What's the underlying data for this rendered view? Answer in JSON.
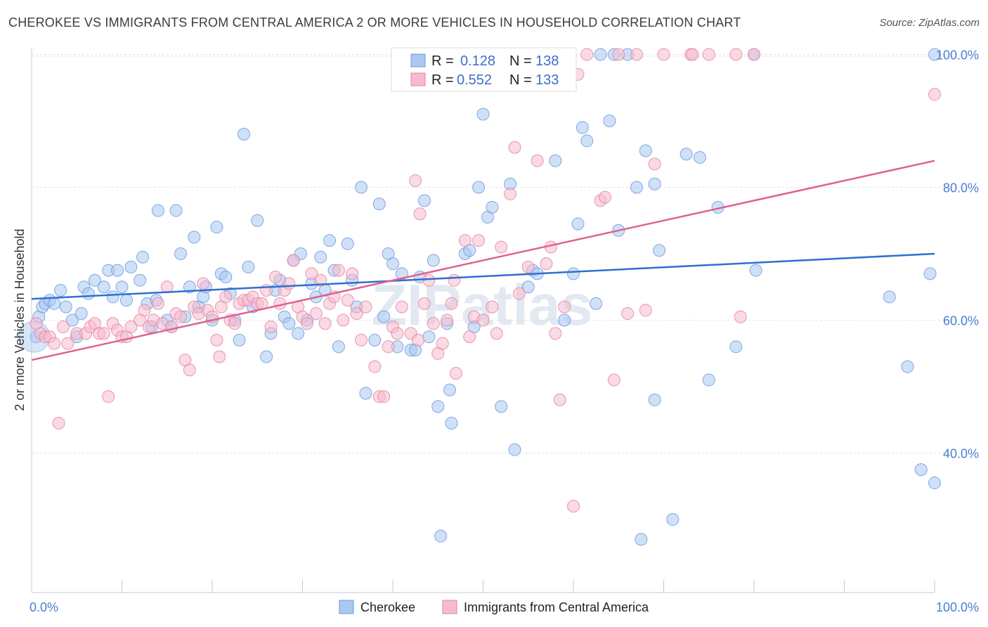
{
  "title": "CHEROKEE VS IMMIGRANTS FROM CENTRAL AMERICA 2 OR MORE VEHICLES IN HOUSEHOLD CORRELATION CHART",
  "source": "Source: ZipAtlas.com",
  "watermark": "ZIPatlas",
  "chart_data": {
    "type": "scatter",
    "xlabel": "",
    "ylabel": "2 or more Vehicles in Household",
    "xlim": [
      0,
      100
    ],
    "ylim": [
      19,
      101
    ],
    "x_tick_labels": [
      "0.0%",
      "100.0%"
    ],
    "y_ticks": [
      40,
      60,
      80,
      100
    ],
    "y_tick_labels": [
      "40.0%",
      "60.0%",
      "80.0%",
      "100.0%"
    ],
    "grid": true,
    "legend_position": "top-center",
    "series": [
      {
        "name": "Cherokee",
        "color": "#aac8f0",
        "edge": "#6a9be0",
        "line_color": "#2f6fd0",
        "R": "0.128",
        "N": "138",
        "trend": [
          [
            0,
            63.2
          ],
          [
            100,
            70.0
          ]
        ],
        "points": [
          [
            0.5,
            57.5
          ],
          [
            0.8,
            60.5
          ],
          [
            1.2,
            62
          ],
          [
            1.5,
            62.5
          ],
          [
            2,
            63
          ],
          [
            2.5,
            62.5
          ],
          [
            3.2,
            64.5
          ],
          [
            3.8,
            62
          ],
          [
            4.5,
            60
          ],
          [
            5,
            57.5
          ],
          [
            5.5,
            61
          ],
          [
            5.8,
            65
          ],
          [
            6.3,
            64
          ],
          [
            7,
            66
          ],
          [
            8,
            65
          ],
          [
            8.5,
            67.5
          ],
          [
            9,
            63.5
          ],
          [
            9.5,
            67.5
          ],
          [
            10,
            65
          ],
          [
            10.5,
            63
          ],
          [
            11,
            68
          ],
          [
            12,
            66
          ],
          [
            12.3,
            69.5
          ],
          [
            12.8,
            62.5
          ],
          [
            13.3,
            59
          ],
          [
            13.8,
            63
          ],
          [
            14,
            76.5
          ],
          [
            15,
            60
          ],
          [
            15.5,
            59
          ],
          [
            16,
            76.5
          ],
          [
            16.5,
            70
          ],
          [
            17,
            60.5
          ],
          [
            17.5,
            65
          ],
          [
            18,
            72.5
          ],
          [
            18.5,
            62
          ],
          [
            19,
            63.5
          ],
          [
            19.3,
            65
          ],
          [
            20,
            60
          ],
          [
            20.5,
            74
          ],
          [
            21,
            67
          ],
          [
            21.5,
            66.5
          ],
          [
            22,
            64
          ],
          [
            22.5,
            60
          ],
          [
            23,
            57
          ],
          [
            23.5,
            88
          ],
          [
            24,
            68
          ],
          [
            24.5,
            62
          ],
          [
            25,
            75
          ],
          [
            26,
            54.5
          ],
          [
            26.5,
            58
          ],
          [
            27,
            64.5
          ],
          [
            27.5,
            66
          ],
          [
            28,
            60.5
          ],
          [
            28.5,
            59.5
          ],
          [
            29,
            69
          ],
          [
            29.5,
            58
          ],
          [
            29.8,
            70
          ],
          [
            30.5,
            60
          ],
          [
            31,
            65.5
          ],
          [
            31.5,
            63.5
          ],
          [
            32,
            69.5
          ],
          [
            32.5,
            64.5
          ],
          [
            33,
            72
          ],
          [
            33.5,
            67.5
          ],
          [
            34,
            56
          ],
          [
            35,
            71.5
          ],
          [
            35.5,
            66
          ],
          [
            36,
            62
          ],
          [
            37,
            49
          ],
          [
            36.5,
            80
          ],
          [
            38,
            57
          ],
          [
            38.5,
            77.5
          ],
          [
            39,
            60.5
          ],
          [
            39.5,
            70
          ],
          [
            40,
            68.5
          ],
          [
            40.5,
            56
          ],
          [
            41,
            67
          ],
          [
            42,
            55.5
          ],
          [
            42.5,
            55.5
          ],
          [
            43,
            66.5
          ],
          [
            43.5,
            78
          ],
          [
            44,
            57.5
          ],
          [
            44.5,
            69
          ],
          [
            45,
            47
          ],
          [
            45.3,
            27.5
          ],
          [
            46,
            59.5
          ],
          [
            46.3,
            49.5
          ],
          [
            46.5,
            44.5
          ],
          [
            48,
            70
          ],
          [
            48.5,
            70.5
          ],
          [
            49,
            59
          ],
          [
            49.5,
            80
          ],
          [
            50,
            91
          ],
          [
            50.5,
            75.5
          ],
          [
            51,
            77
          ],
          [
            52,
            47
          ],
          [
            53,
            80.5
          ],
          [
            53.5,
            40.5
          ],
          [
            55,
            65
          ],
          [
            55.5,
            67.5
          ],
          [
            56,
            67
          ],
          [
            58,
            84
          ],
          [
            59,
            60
          ],
          [
            60,
            67
          ],
          [
            60.5,
            74.5
          ],
          [
            61,
            89
          ],
          [
            61.5,
            87
          ],
          [
            62.5,
            62.5
          ],
          [
            63,
            100
          ],
          [
            64,
            90
          ],
          [
            64.5,
            100
          ],
          [
            65,
            73.5
          ],
          [
            66,
            100
          ],
          [
            67,
            80
          ],
          [
            67.5,
            27
          ],
          [
            68,
            85.5
          ],
          [
            69,
            48
          ],
          [
            69,
            80.5
          ],
          [
            69.5,
            70.5
          ],
          [
            71,
            30
          ],
          [
            72.5,
            85
          ],
          [
            74,
            84.5
          ],
          [
            75,
            51
          ],
          [
            76,
            77
          ],
          [
            78,
            56
          ],
          [
            80,
            100
          ],
          [
            80.2,
            67.5
          ],
          [
            95,
            63.5
          ],
          [
            97,
            53
          ],
          [
            98.5,
            37.5
          ],
          [
            100,
            35.5
          ],
          [
            99.5,
            67
          ],
          [
            100,
            100
          ]
        ]
      },
      {
        "name": "Immigrants from Central America",
        "color": "#f6bccd",
        "edge": "#e6859f",
        "line_color": "#e0628e",
        "R": "0.552",
        "N": "133",
        "trend": [
          [
            0,
            54.0
          ],
          [
            100,
            84.0
          ]
        ],
        "points": [
          [
            0.5,
            59.5
          ],
          [
            1,
            58
          ],
          [
            1.5,
            57.5
          ],
          [
            2,
            57.5
          ],
          [
            2.5,
            56.5
          ],
          [
            3,
            44.5
          ],
          [
            3.5,
            59
          ],
          [
            4,
            56.5
          ],
          [
            5,
            58
          ],
          [
            6,
            58
          ],
          [
            6.5,
            59
          ],
          [
            7,
            59.5
          ],
          [
            7.5,
            58
          ],
          [
            8,
            58
          ],
          [
            8.5,
            48.5
          ],
          [
            9,
            59.5
          ],
          [
            9.5,
            58.5
          ],
          [
            10,
            57.5
          ],
          [
            10.5,
            57.5
          ],
          [
            11,
            59
          ],
          [
            12,
            60
          ],
          [
            12.5,
            61.5
          ],
          [
            13,
            59
          ],
          [
            13.5,
            60
          ],
          [
            14,
            62.5
          ],
          [
            14.5,
            59.5
          ],
          [
            15,
            65
          ],
          [
            15.5,
            59
          ],
          [
            16,
            61
          ],
          [
            16.5,
            60.5
          ],
          [
            17,
            54
          ],
          [
            17.5,
            52.5
          ],
          [
            18,
            62
          ],
          [
            18.5,
            61
          ],
          [
            19,
            65.5
          ],
          [
            19.5,
            61.5
          ],
          [
            20,
            60.5
          ],
          [
            20.5,
            57
          ],
          [
            20.8,
            54.5
          ],
          [
            21,
            62
          ],
          [
            21.5,
            63.5
          ],
          [
            22,
            60
          ],
          [
            22.5,
            59.5
          ],
          [
            23,
            62.5
          ],
          [
            23.5,
            63
          ],
          [
            24,
            63
          ],
          [
            24.5,
            63.5
          ],
          [
            25,
            62.5
          ],
          [
            25.5,
            62.5
          ],
          [
            26,
            64.5
          ],
          [
            26.5,
            59
          ],
          [
            27,
            66.5
          ],
          [
            27.5,
            62.5
          ],
          [
            28,
            64.5
          ],
          [
            28.5,
            65.5
          ],
          [
            29,
            69
          ],
          [
            29.5,
            62
          ],
          [
            30,
            60.5
          ],
          [
            30.5,
            59.5
          ],
          [
            31,
            67
          ],
          [
            31.5,
            61
          ],
          [
            32,
            66
          ],
          [
            32.5,
            59.5
          ],
          [
            33,
            62.5
          ],
          [
            33.5,
            63.5
          ],
          [
            34,
            67.5
          ],
          [
            34.5,
            60
          ],
          [
            35,
            63
          ],
          [
            35.5,
            67
          ],
          [
            36,
            61
          ],
          [
            36.5,
            57
          ],
          [
            37,
            62
          ],
          [
            38,
            53
          ],
          [
            38.5,
            48.5
          ],
          [
            39,
            48.5
          ],
          [
            39.5,
            56
          ],
          [
            40,
            59
          ],
          [
            40.5,
            58
          ],
          [
            41,
            62
          ],
          [
            42,
            58
          ],
          [
            42.5,
            81
          ],
          [
            42.8,
            57
          ],
          [
            43,
            76
          ],
          [
            43.5,
            62.5
          ],
          [
            44,
            66
          ],
          [
            44.5,
            59.5
          ],
          [
            45,
            55
          ],
          [
            45.5,
            56.5
          ],
          [
            46,
            60
          ],
          [
            46.5,
            62.5
          ],
          [
            46.8,
            66
          ],
          [
            47,
            52
          ],
          [
            48,
            72
          ],
          [
            48.5,
            57.5
          ],
          [
            49,
            60.5
          ],
          [
            49.5,
            72
          ],
          [
            50,
            60
          ],
          [
            51,
            62
          ],
          [
            51.5,
            58
          ],
          [
            52,
            71
          ],
          [
            53,
            79
          ],
          [
            53.5,
            86
          ],
          [
            54,
            64
          ],
          [
            55,
            68
          ],
          [
            56,
            84
          ],
          [
            57,
            68.5
          ],
          [
            57.5,
            71
          ],
          [
            58,
            58
          ],
          [
            58.5,
            48
          ],
          [
            59,
            62
          ],
          [
            60,
            32
          ],
          [
            60.5,
            97
          ],
          [
            61.5,
            100
          ],
          [
            63,
            78
          ],
          [
            63.5,
            78.5
          ],
          [
            64.5,
            51
          ],
          [
            65,
            100
          ],
          [
            66,
            61
          ],
          [
            67,
            100
          ],
          [
            68,
            61.5
          ],
          [
            69,
            83.5
          ],
          [
            70,
            100
          ],
          [
            73,
            100
          ],
          [
            73.2,
            100
          ],
          [
            75,
            100
          ],
          [
            78,
            100
          ],
          [
            78.5,
            60.5
          ],
          [
            80,
            100
          ],
          [
            100,
            94
          ]
        ]
      }
    ]
  },
  "legend_bottom": [
    "Cherokee",
    "Immigrants from Central America"
  ],
  "legend_top": {
    "r_label": "R =",
    "n_label": "N =",
    "rows": [
      {
        "R": "0.128",
        "N": "138"
      },
      {
        "R": "0.552",
        "N": "133"
      }
    ]
  }
}
